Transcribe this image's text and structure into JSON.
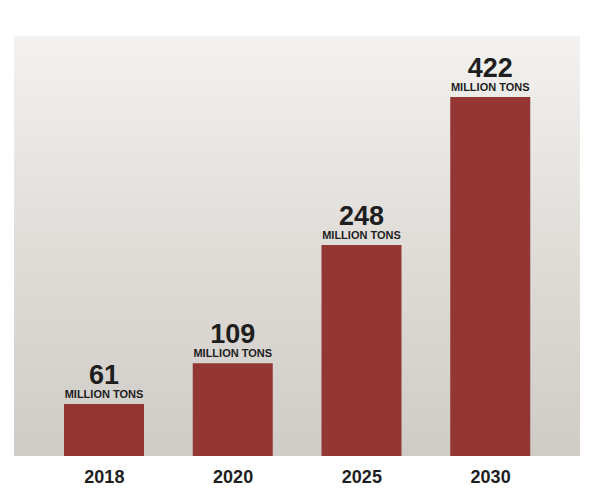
{
  "chart_data": {
    "type": "bar",
    "categories": [
      "2018",
      "2020",
      "2025",
      "2030"
    ],
    "values": [
      61,
      109,
      248,
      422
    ],
    "value_labels": [
      "61 MILLION TONS",
      "109 MILLION TONS",
      "248 MILLION TONS",
      "422 MILLION TONS"
    ],
    "color": "#943634",
    "data_labels": true,
    "tick_labels": "x",
    "grid": false
  }
}
